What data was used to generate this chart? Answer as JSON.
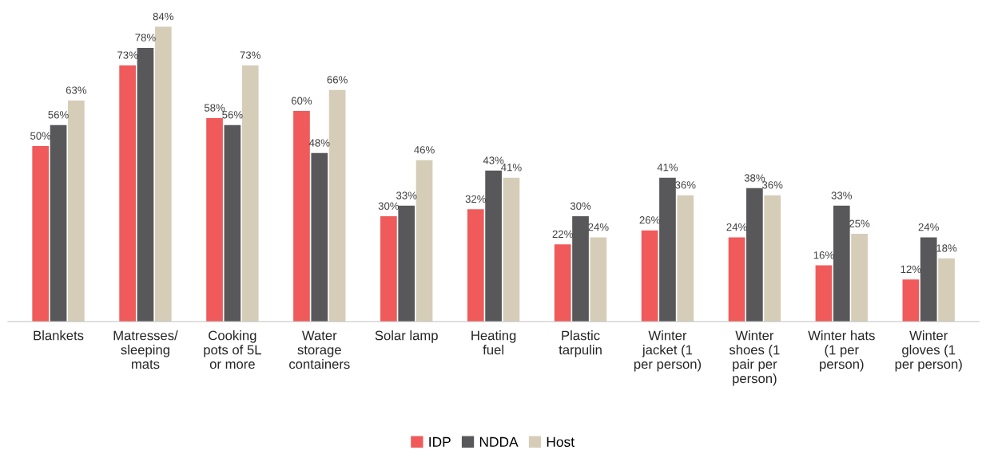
{
  "chart_data": {
    "type": "bar",
    "categories": [
      "Blankets",
      "Matresses/ sleeping mats",
      "Cooking pots of 5L or more",
      "Water storage containers",
      "Solar lamp",
      "Heating fuel",
      "Plastic tarpulin",
      "Winter jacket (1 per person)",
      "Winter shoes (1 pair per person)",
      "Winter hats (1 per person)",
      "Winter gloves (1 per person)"
    ],
    "series": [
      {
        "name": "IDP",
        "color": "#f05a5a",
        "values": [
          50,
          73,
          58,
          60,
          30,
          32,
          22,
          26,
          24,
          16,
          12
        ],
        "value_labels": [
          "50%",
          "73%",
          "58%",
          "60%",
          "30%",
          "32%",
          "22%",
          "26%",
          "24%",
          "16%",
          "12%"
        ]
      },
      {
        "name": "NDDA",
        "color": "#58585a",
        "values": [
          56,
          78,
          56,
          48,
          33,
          43,
          30,
          41,
          38,
          33,
          24
        ],
        "value_labels": [
          "56%",
          "78%",
          "56%",
          "48%",
          "33%",
          "43%",
          "30%",
          "41%",
          "38%",
          "33%",
          "24%"
        ]
      },
      {
        "name": "Host",
        "color": "#d5cdb8",
        "values": [
          63,
          84,
          73,
          66,
          46,
          41,
          24,
          36,
          36,
          25,
          18
        ],
        "value_labels": [
          "63%",
          "84%",
          "73%",
          "66%",
          "46%",
          "41%",
          "24%",
          "36%",
          "36%",
          "25%",
          "18%"
        ]
      }
    ],
    "legend": "bottom",
    "grid": false
  }
}
